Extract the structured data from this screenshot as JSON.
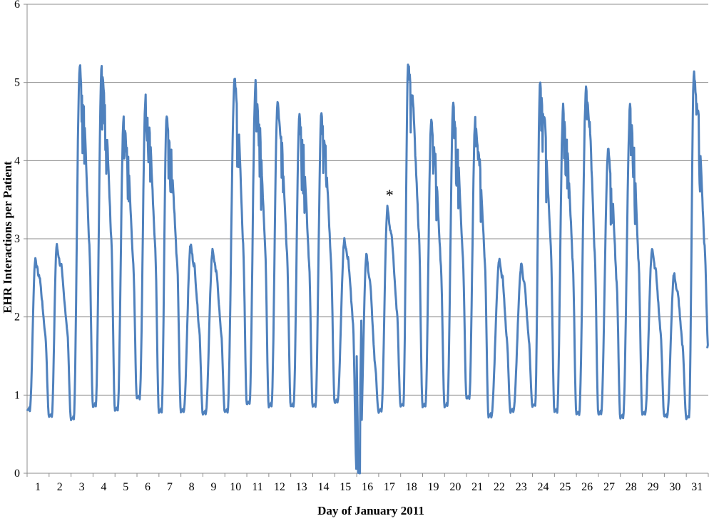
{
  "chart_data": {
    "type": "line",
    "title": "",
    "xlabel": "Day of January 2011",
    "ylabel": "EHR Interactions per Patient",
    "xlim": [
      1,
      32
    ],
    "ylim": [
      0,
      6
    ],
    "x_ticks": [
      1,
      2,
      3,
      4,
      5,
      6,
      7,
      8,
      9,
      10,
      11,
      12,
      13,
      14,
      15,
      16,
      17,
      18,
      19,
      20,
      21,
      22,
      23,
      24,
      25,
      26,
      27,
      28,
      29,
      30,
      31
    ],
    "y_ticks": [
      0,
      1,
      2,
      3,
      4,
      5,
      6
    ],
    "grid": "horizontal",
    "legend": "none",
    "series_color": "#4F81BD",
    "annotations": [
      {
        "text": "*",
        "day": 17.5,
        "value": 3.6
      }
    ],
    "series": [
      {
        "name": "",
        "days": [
          1,
          2,
          3,
          4,
          5,
          6,
          7,
          8,
          9,
          10,
          11,
          12,
          13,
          14,
          15,
          16,
          17,
          18,
          19,
          20,
          21,
          22,
          23,
          24,
          25,
          26,
          27,
          28,
          29,
          30,
          31,
          31.95
        ],
        "daily_min": [
          0.8,
          0.72,
          0.68,
          0.85,
          0.8,
          0.95,
          0.78,
          0.78,
          0.75,
          0.78,
          0.88,
          0.85,
          0.85,
          0.85,
          0.9,
          0.0,
          0.78,
          0.85,
          0.85,
          0.85,
          0.95,
          0.72,
          0.78,
          0.85,
          0.78,
          0.75,
          0.75,
          0.7,
          0.75,
          0.72,
          0.7,
          1.6
        ],
        "daily_peak": [
          2.75,
          2.92,
          5.25,
          5.22,
          4.58,
          4.85,
          4.58,
          2.93,
          2.86,
          5.1,
          5.0,
          4.77,
          4.62,
          4.62,
          3.0,
          2.8,
          3.4,
          5.33,
          4.52,
          4.72,
          4.52,
          2.75,
          2.67,
          5.03,
          4.7,
          4.97,
          4.15,
          4.72,
          2.86,
          2.55,
          5.15,
          1.6
        ],
        "peak_hour_fraction": [
          0.38,
          0.35,
          0.4,
          0.4,
          0.4,
          0.4,
          0.35,
          0.45,
          0.45,
          0.45,
          0.4,
          0.4,
          0.4,
          0.4,
          0.45,
          0.45,
          0.4,
          0.35,
          0.4,
          0.4,
          0.4,
          0.5,
          0.5,
          0.35,
          0.4,
          0.45,
          0.45,
          0.45,
          0.45,
          0.45,
          0.35,
          0.0
        ]
      }
    ]
  }
}
